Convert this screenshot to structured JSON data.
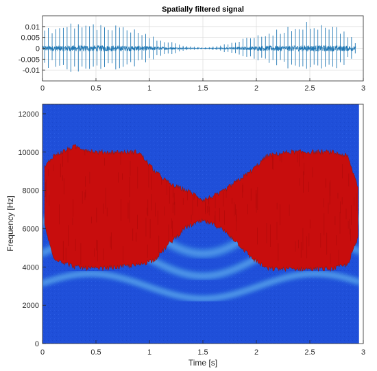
{
  "chart_data": [
    {
      "type": "line",
      "title": "Spatially filtered signal",
      "xlabel": "",
      "ylabel": "",
      "xlim": [
        0,
        3
      ],
      "ylim": [
        -0.015,
        0.015
      ],
      "xticks": [
        0,
        0.5,
        1,
        1.5,
        2,
        2.5,
        3
      ],
      "xtick_labels": [
        "0",
        "0.5",
        "1",
        "1.5",
        "2",
        "2.5",
        "3"
      ],
      "yticks": [
        -0.01,
        -0.005,
        0,
        0.005,
        0.01
      ],
      "ytick_labels": [
        "-0.01",
        "-0.005",
        "0",
        "0.005",
        "0.01"
      ],
      "grid": true,
      "line_color": "#1f77b4",
      "signal_end": 2.93,
      "envelope": {
        "x": [
          0,
          0.2,
          0.35,
          0.5,
          0.7,
          0.9,
          1.0,
          1.2,
          1.35,
          1.5,
          1.65,
          1.8,
          2.0,
          2.1,
          2.3,
          2.5,
          2.7,
          2.9,
          2.93
        ],
        "peak": [
          0.009,
          0.011,
          0.0125,
          0.0115,
          0.011,
          0.0085,
          0.006,
          0.003,
          0.0012,
          0.0004,
          0.0012,
          0.0035,
          0.006,
          0.0075,
          0.0105,
          0.0125,
          0.0115,
          0.006,
          0.002
        ],
        "noise": [
          0.0012,
          0.0013,
          0.0014,
          0.0014,
          0.0013,
          0.0012,
          0.001,
          0.0006,
          0.0003,
          0.00015,
          0.0003,
          0.0006,
          0.001,
          0.0012,
          0.0013,
          0.0014,
          0.0014,
          0.0012,
          0.0008
        ]
      },
      "impulse_interval": 0.035
    },
    {
      "type": "heatmap",
      "title": "",
      "xlabel": "Time [s]",
      "ylabel": "Frequency [Hz]",
      "xlim": [
        0,
        3
      ],
      "ylim": [
        0,
        12500
      ],
      "xticks": [
        0,
        0.5,
        1,
        1.5,
        2,
        2.5,
        3
      ],
      "xtick_labels": [
        "0",
        "0.5",
        "1",
        "1.5",
        "2",
        "2.5",
        "3"
      ],
      "yticks": [
        0,
        2000,
        4000,
        6000,
        8000,
        10000,
        12000
      ],
      "ytick_labels": [
        "0",
        "2000",
        "4000",
        "6000",
        "8000",
        "10000",
        "12000"
      ],
      "colors": {
        "background": "#1f4fd9",
        "active": "#c80d0d",
        "harmonic": "#4a9fe6"
      },
      "active_region": {
        "x": [
          0.02,
          0.1,
          0.3,
          0.5,
          0.7,
          0.9,
          1.05,
          1.2,
          1.35,
          1.45,
          1.5,
          1.55,
          1.65,
          1.8,
          1.95,
          2.1,
          2.3,
          2.5,
          2.7,
          2.85,
          2.95
        ],
        "upper": [
          9200,
          9800,
          10300,
          10000,
          10000,
          10000,
          9000,
          8300,
          8000,
          7700,
          7500,
          7600,
          7800,
          8400,
          9000,
          9800,
          10000,
          10000,
          10000,
          9800,
          8200
        ],
        "lower": [
          6200,
          4500,
          4000,
          3900,
          4000,
          4100,
          4400,
          5300,
          6100,
          6300,
          6400,
          6300,
          6100,
          5400,
          4500,
          3900,
          3900,
          3900,
          3900,
          4100,
          5500
        ]
      },
      "harmonics": {
        "offset_hz": 3000,
        "amplitude_hz": 650,
        "period_s": 2.1,
        "phase_s": 0.45,
        "multiples": [
          1,
          1.5,
          2
        ]
      },
      "data_end": 2.96
    }
  ]
}
